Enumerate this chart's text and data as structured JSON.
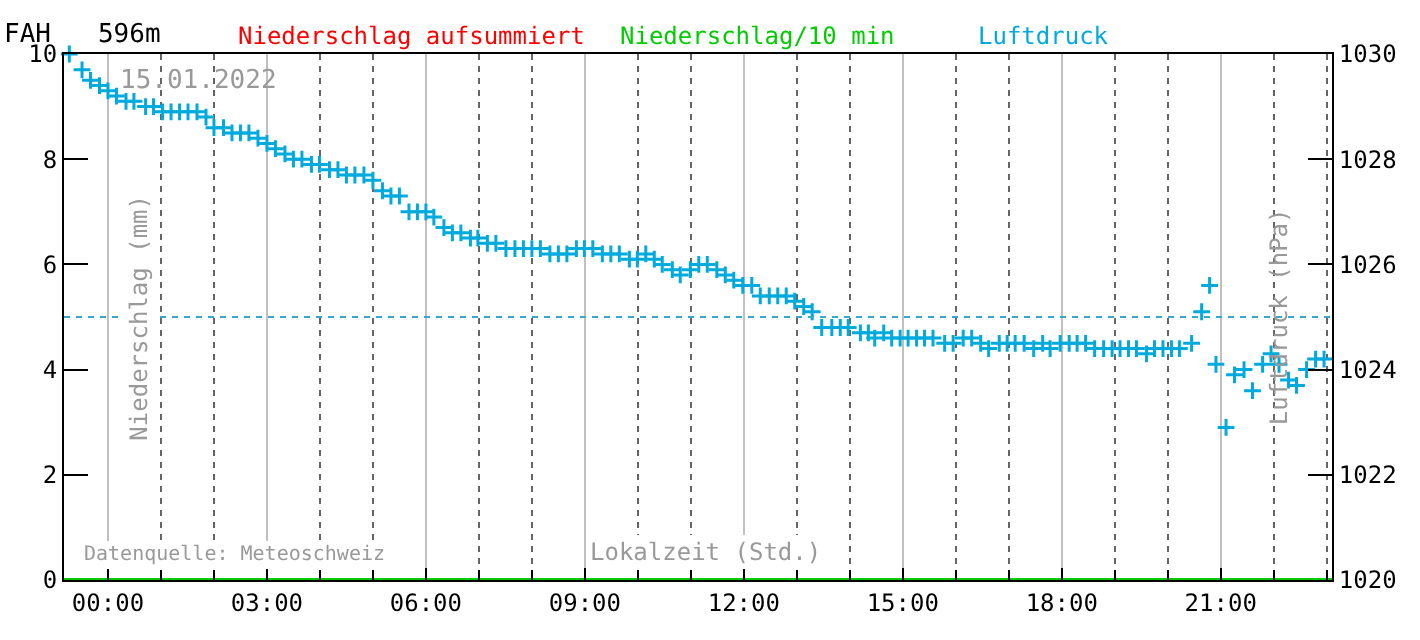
{
  "chart_data": {
    "type": "scatter",
    "title": "FAH   596m",
    "xlabel": "Lokalzeit (Std.)",
    "ylabel": "Niederschlag (mm)",
    "y2label": "Luftdruck (hPa)",
    "annotations": [
      "15.01.2022",
      "Datenquelle: Meteoschweiz"
    ],
    "xlim": [
      -0.83,
      23.1
    ],
    "xticks": [
      {
        "value": 0,
        "label": "00:00"
      },
      {
        "value": 3,
        "label": "03:00"
      },
      {
        "value": 6,
        "label": "06:00"
      },
      {
        "value": 9,
        "label": "09:00"
      },
      {
        "value": 12,
        "label": "12:00"
      },
      {
        "value": 15,
        "label": "15:00"
      },
      {
        "value": 18,
        "label": "18:00"
      },
      {
        "value": 21,
        "label": "21:00"
      }
    ],
    "ylim": [
      0,
      10
    ],
    "yticks": [
      0,
      2,
      4,
      6,
      8,
      10
    ],
    "y2lim": [
      1020,
      1030
    ],
    "y2ticks": [
      1020,
      1022,
      1024,
      1026,
      1028,
      1030
    ],
    "grid": "x",
    "legend": false,
    "ref_lines": [
      {
        "axis": "y2",
        "value": 1025,
        "color": "#33aacc",
        "line_style": "dotted"
      }
    ],
    "series": [
      {
        "name": "Niederschlag aufsummiert",
        "color": "#ff0000",
        "type": "line"
      },
      {
        "name": "Niederschlag/10 min",
        "color": "#00cc00",
        "type": "line",
        "x": [
          -0.83,
          23.1
        ],
        "values": [
          0,
          0
        ]
      },
      {
        "name": "Luftdruck",
        "color": "#00aadd",
        "marker": "cross",
        "axis": "y2",
        "x": [
          -0.73,
          -0.49,
          -0.33,
          -0.16,
          0,
          0.16,
          0.34,
          0.49,
          0.71,
          0.86,
          1.03,
          1.19,
          1.35,
          1.51,
          1.68,
          1.85,
          2.0,
          2.18,
          2.34,
          2.5,
          2.66,
          2.83,
          3.0,
          3.16,
          3.34,
          3.5,
          3.66,
          3.84,
          3.99,
          4.18,
          4.34,
          4.5,
          4.66,
          4.83,
          5.0,
          5.18,
          5.34,
          5.5,
          5.68,
          5.84,
          6.0,
          6.15,
          6.34,
          6.5,
          6.66,
          6.84,
          6.98,
          7.16,
          7.32,
          7.51,
          7.68,
          7.84,
          8.0,
          8.16,
          8.34,
          8.5,
          8.66,
          8.84,
          8.99,
          9.15,
          9.33,
          9.49,
          9.65,
          9.84,
          9.99,
          10.15,
          10.31,
          10.46,
          10.65,
          10.8,
          10.99,
          11.15,
          11.31,
          11.49,
          11.65,
          11.81,
          11.98,
          12.15,
          12.31,
          12.48,
          12.64,
          12.8,
          12.96,
          13.13,
          13.29,
          13.47,
          13.66,
          13.82,
          13.97,
          14.2,
          14.35,
          14.47,
          14.64,
          14.79,
          14.95,
          15.1,
          15.26,
          15.41,
          15.57,
          15.79,
          15.95,
          16.14,
          16.3,
          16.47,
          16.62,
          16.82,
          16.97,
          17.12,
          17.29,
          17.47,
          17.64,
          17.78,
          17.97,
          18.14,
          18.29,
          18.45,
          18.62,
          18.79,
          18.95,
          19.1,
          19.26,
          19.41,
          19.6,
          19.75,
          19.91,
          20.07,
          20.22,
          20.45,
          20.64,
          20.79,
          20.91,
          21.1,
          21.26,
          21.44,
          21.6,
          21.79,
          21.95,
          22.1,
          22.28,
          22.43,
          22.62,
          22.79,
          22.95
        ],
        "values": [
          1030.0,
          1029.7,
          1029.5,
          1029.4,
          1029.3,
          1029.2,
          1029.1,
          1029.1,
          1029.0,
          1029.0,
          1028.9,
          1028.9,
          1028.9,
          1028.9,
          1028.9,
          1028.8,
          1028.6,
          1028.6,
          1028.5,
          1028.5,
          1028.5,
          1028.4,
          1028.3,
          1028.2,
          1028.1,
          1028.0,
          1028.0,
          1027.9,
          1027.9,
          1027.8,
          1027.8,
          1027.7,
          1027.7,
          1027.7,
          1027.6,
          1027.4,
          1027.3,
          1027.3,
          1027.0,
          1027.0,
          1027.0,
          1026.9,
          1026.7,
          1026.6,
          1026.6,
          1026.5,
          1026.5,
          1026.4,
          1026.4,
          1026.3,
          1026.3,
          1026.3,
          1026.3,
          1026.3,
          1026.2,
          1026.2,
          1026.2,
          1026.3,
          1026.3,
          1026.3,
          1026.2,
          1026.2,
          1026.2,
          1026.1,
          1026.1,
          1026.2,
          1026.1,
          1026.0,
          1025.9,
          1025.8,
          1025.9,
          1026.0,
          1026.0,
          1025.9,
          1025.8,
          1025.7,
          1025.6,
          1025.6,
          1025.4,
          1025.4,
          1025.4,
          1025.4,
          1025.3,
          1025.2,
          1025.1,
          1024.8,
          1024.8,
          1024.8,
          1024.8,
          1024.7,
          1024.7,
          1024.6,
          1024.7,
          1024.6,
          1024.6,
          1024.6,
          1024.6,
          1024.6,
          1024.6,
          1024.5,
          1024.5,
          1024.6,
          1024.6,
          1024.5,
          1024.4,
          1024.5,
          1024.5,
          1024.5,
          1024.5,
          1024.4,
          1024.5,
          1024.4,
          1024.5,
          1024.5,
          1024.5,
          1024.5,
          1024.4,
          1024.4,
          1024.4,
          1024.4,
          1024.4,
          1024.4,
          1024.3,
          1024.4,
          1024.4,
          1024.4,
          1024.4,
          1024.5,
          1025.1,
          1025.6,
          1024.1,
          1022.9,
          1023.9,
          1024.0,
          1023.6,
          1024.1,
          1024.3,
          1024.1,
          1023.8,
          1023.7,
          1024.0,
          1024.2,
          1024.2
        ]
      }
    ]
  }
}
